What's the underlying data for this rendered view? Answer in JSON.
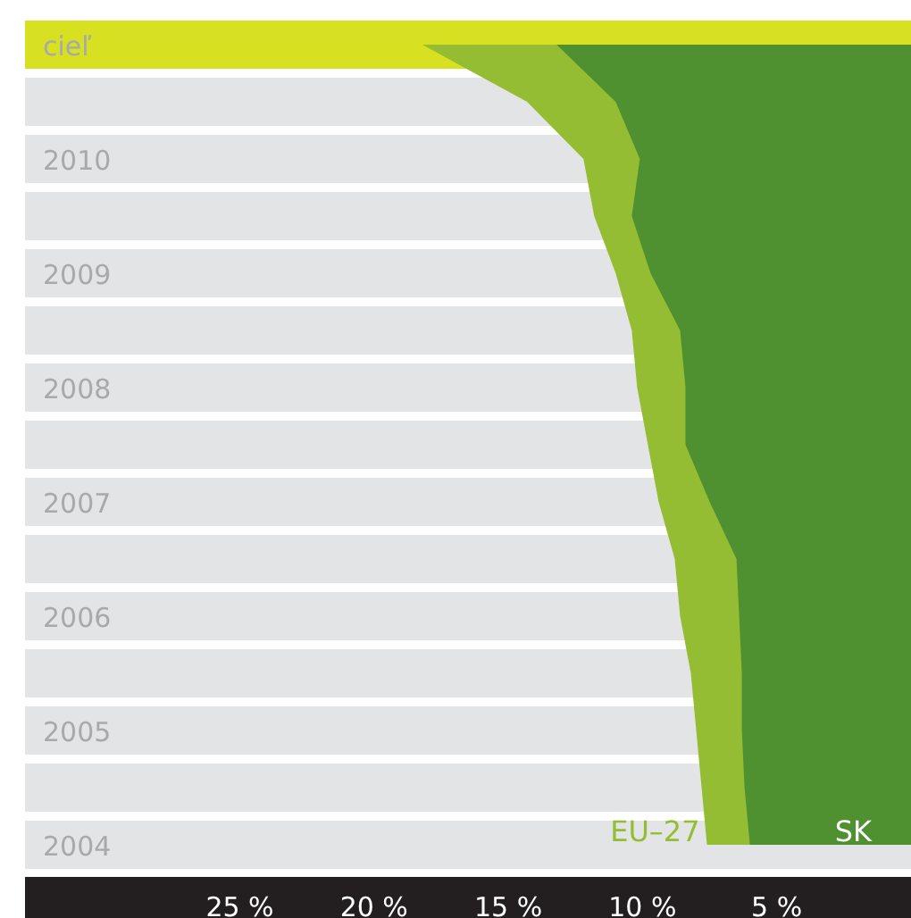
{
  "chart_data": {
    "type": "area",
    "orientation": "horizontal",
    "categories": [
      "cieľ",
      null,
      "2010",
      null,
      "2009",
      null,
      "2008",
      null,
      "2007",
      null,
      "2006",
      null,
      "2005",
      null,
      "2004"
    ],
    "series": [
      {
        "name": "EU–27",
        "color": "#95bd33",
        "values": [
          18.2,
          14.3,
          12.2,
          11.8,
          11.0,
          10.4,
          10.2,
          9.8,
          9.4,
          8.8,
          8.6,
          8.2,
          8.0,
          7.8,
          7.6
        ]
      },
      {
        "name": "SK",
        "color": "#4f9030",
        "values": [
          13.2,
          11.0,
          10.1,
          10.4,
          9.7,
          8.6,
          8.4,
          8.4,
          7.5,
          6.5,
          6.4,
          6.3,
          6.3,
          6.2,
          6.0
        ]
      }
    ],
    "xlim": [
      33,
      0
    ],
    "xticks": [
      {
        "value": 25,
        "label": "25 %"
      },
      {
        "value": 20,
        "label": "20 %"
      },
      {
        "value": 15,
        "label": "15 %"
      },
      {
        "value": 10,
        "label": "10 %"
      },
      {
        "value": 5,
        "label": "5 %"
      }
    ],
    "grid": "y",
    "bands": [
      {
        "axis": "y",
        "from": "cieľ",
        "to": "cieľ",
        "color": "#d7e021"
      }
    ],
    "legend": false
  }
}
